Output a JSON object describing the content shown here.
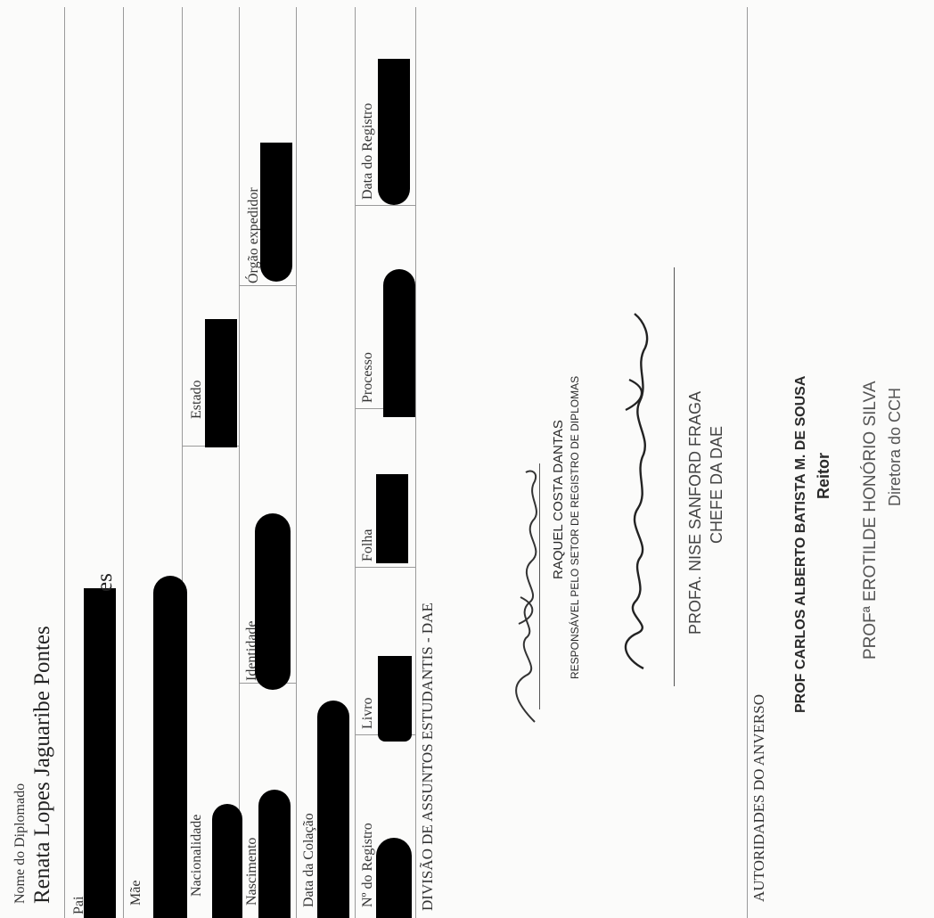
{
  "fields": {
    "diplomado_label": "Nome do Diplomado",
    "diplomado_name": "Renata Lopes Jaguaribe Pontes",
    "pai_label": "Pai",
    "pai_tail": "es",
    "mae_label": "Mãe",
    "nacionalidade_label": "Nacionalidade",
    "estado_label": "Estado",
    "nascimento_label": "Nascimento",
    "identidade_label": "Identidade",
    "orgao_label": "Órgão expedidor",
    "colacao_label": "Data da Colação",
    "registro_label": "Nº do Registro",
    "livro_label": "Livro",
    "folha_label": "Folha",
    "processo_label": "Processo",
    "data_registro_label": "Data do Registro"
  },
  "dae": {
    "heading": "DIVISÃO DE ASSUNTOS ESTUDANTIS - DAE",
    "sig1_name": "RAQUEL COSTA DANTAS",
    "sig1_role": "RESPONSÁVEL PELO SETOR DE REGISTRO DE DIPLOMAS",
    "sig2_name": "PROFA. NISE SANFORD FRAGA",
    "sig2_role": "CHEFE DA DAE"
  },
  "anverso": {
    "heading": "AUTORIDADES DO ANVERSO",
    "reitor_name": "PROF CARLOS ALBERTO BATISTA M. DE SOUSA",
    "reitor_role": "Reitor",
    "diretora_name": "PROFª EROTILDE HONÓRIO SILVA",
    "diretora_role": "Diretora do CCH"
  }
}
